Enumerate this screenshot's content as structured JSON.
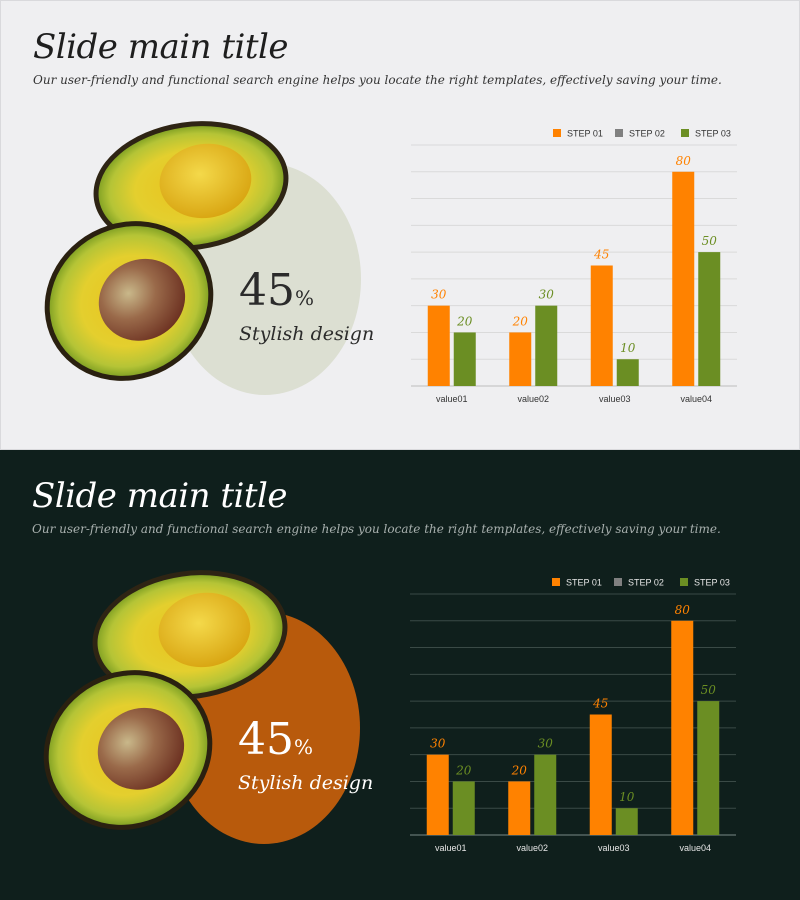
{
  "slides": [
    {
      "theme": "light",
      "title": "Slide main title",
      "subtitle": "Our user-friendly and functional search engine helps you locate the right templates, effectively saving your time.",
      "stat": {
        "value": "45",
        "unit": "%",
        "caption": "Stylish design"
      }
    },
    {
      "theme": "dark",
      "title": "Slide main title",
      "subtitle": "Our user-friendly and functional search engine helps you locate the right templates, effectively saving your time.",
      "stat": {
        "value": "45",
        "unit": "%",
        "caption": "Stylish design"
      }
    }
  ],
  "colors": {
    "step01": "#ff8200",
    "step02": "#808080",
    "step03": "#6b8e23",
    "light_background": "#efeff1",
    "dark_background": "#0f1f1c",
    "light_circle": "#dcdfd2",
    "dark_circle": "#b85a0c"
  },
  "chart_data": [
    {
      "type": "bar",
      "categories": [
        "value01",
        "value02",
        "value03",
        "value04"
      ],
      "series": [
        {
          "name": "STEP 01",
          "values": [
            30,
            20,
            45,
            80
          ],
          "labels": [
            "30",
            "20",
            "45",
            "80"
          ]
        },
        {
          "name": "STEP 02",
          "values": [
            0,
            0,
            0,
            0
          ],
          "labels": [
            "",
            "",
            "",
            ""
          ]
        },
        {
          "name": "STEP 03",
          "values": [
            20,
            30,
            10,
            50
          ],
          "labels": [
            "20",
            "30",
            "10",
            "50"
          ]
        }
      ],
      "ylim": [
        0,
        90
      ],
      "grid": true,
      "legend": "top-right"
    },
    {
      "type": "bar",
      "categories": [
        "value01",
        "value02",
        "value03",
        "value04"
      ],
      "series": [
        {
          "name": "STEP 01",
          "values": [
            30,
            20,
            45,
            80
          ],
          "labels": [
            "30",
            "20",
            "45",
            "80"
          ]
        },
        {
          "name": "STEP 02",
          "values": [
            0,
            0,
            0,
            0
          ],
          "labels": [
            "",
            "",
            "",
            ""
          ]
        },
        {
          "name": "STEP 03",
          "values": [
            20,
            30,
            10,
            50
          ],
          "labels": [
            "20",
            "30",
            "10",
            "50"
          ]
        }
      ],
      "ylim": [
        0,
        90
      ],
      "grid": true,
      "legend": "top-right"
    }
  ]
}
